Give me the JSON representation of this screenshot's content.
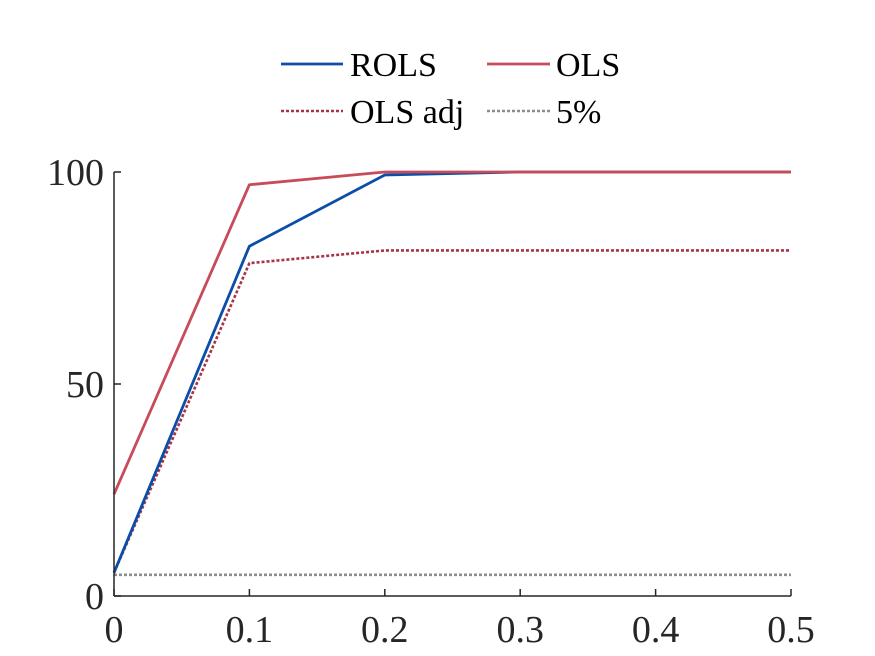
{
  "chart_data": {
    "type": "line",
    "title": "",
    "xlabel": "",
    "ylabel": "",
    "xlim": [
      0,
      0.5
    ],
    "ylim": [
      0,
      100
    ],
    "grid": false,
    "legend_position": "top",
    "x_ticks": [
      0,
      0.1,
      0.2,
      0.3,
      0.4,
      0.5
    ],
    "x_tick_labels": [
      "0",
      "0.1",
      "0.2",
      "0.3",
      "0.4",
      "0.5"
    ],
    "y_ticks": [
      0,
      50,
      100
    ],
    "y_tick_labels": [
      "0",
      "50",
      "100"
    ],
    "x": [
      0,
      0.1,
      0.2,
      0.3,
      0.4,
      0.5
    ],
    "series": [
      {
        "name": "ROLS",
        "color": "#0a4ea8",
        "style": "solid",
        "values": [
          5.5,
          82.5,
          99.3,
          100,
          100,
          100
        ]
      },
      {
        "name": "OLS",
        "color": "#c84b5a",
        "style": "solid",
        "values": [
          24,
          97,
          100,
          100,
          100,
          100
        ]
      },
      {
        "name": "OLS adj",
        "color": "#a63446",
        "style": "dotted",
        "values": [
          5.5,
          78.5,
          81.5,
          81.5,
          81.5,
          81.5
        ]
      },
      {
        "name": "5%",
        "color": "#8c8c8c",
        "style": "dotted",
        "values": [
          5,
          5,
          5,
          5,
          5,
          5
        ]
      }
    ]
  }
}
